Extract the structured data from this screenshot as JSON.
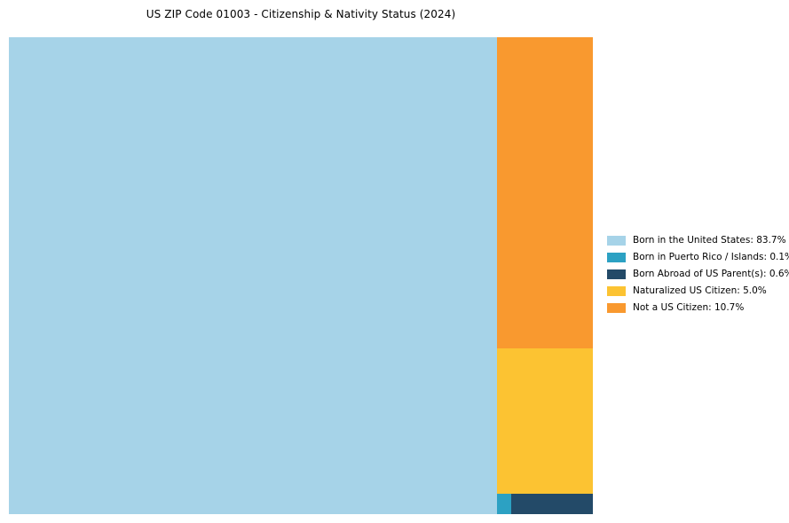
{
  "page": {
    "background": "#ffffff"
  },
  "chart_data": {
    "type": "treemap",
    "title": "US ZIP Code 01003 - Citizenship & Nativity Status (2024)",
    "legend_position": "right",
    "items": [
      {
        "label": "Born in the United States",
        "value": 83.7,
        "display": "83.7%",
        "color": "#A6D3E8",
        "legend": "Born in the United States: 83.7%"
      },
      {
        "label": "Born in Puerto Rico / Islands",
        "value": 0.1,
        "display": "0.1%",
        "color": "#2CA1C3",
        "legend": "Born in Puerto Rico / Islands: 0.1%"
      },
      {
        "label": "Born Abroad of US Parent(s)",
        "value": 0.6,
        "display": "0.6%",
        "color": "#234A68",
        "legend": "Born Abroad of US Parent(s): 0.6%"
      },
      {
        "label": "Naturalized US Citizen",
        "value": 5.0,
        "display": "5.0%",
        "color": "#FCC332",
        "legend": "Naturalized US Citizen: 5.0%"
      },
      {
        "label": "Not a US Citizen",
        "value": 10.7,
        "display": "10.7%",
        "color": "#F9992F",
        "legend": "Not a US Citizen: 10.7%"
      }
    ]
  }
}
